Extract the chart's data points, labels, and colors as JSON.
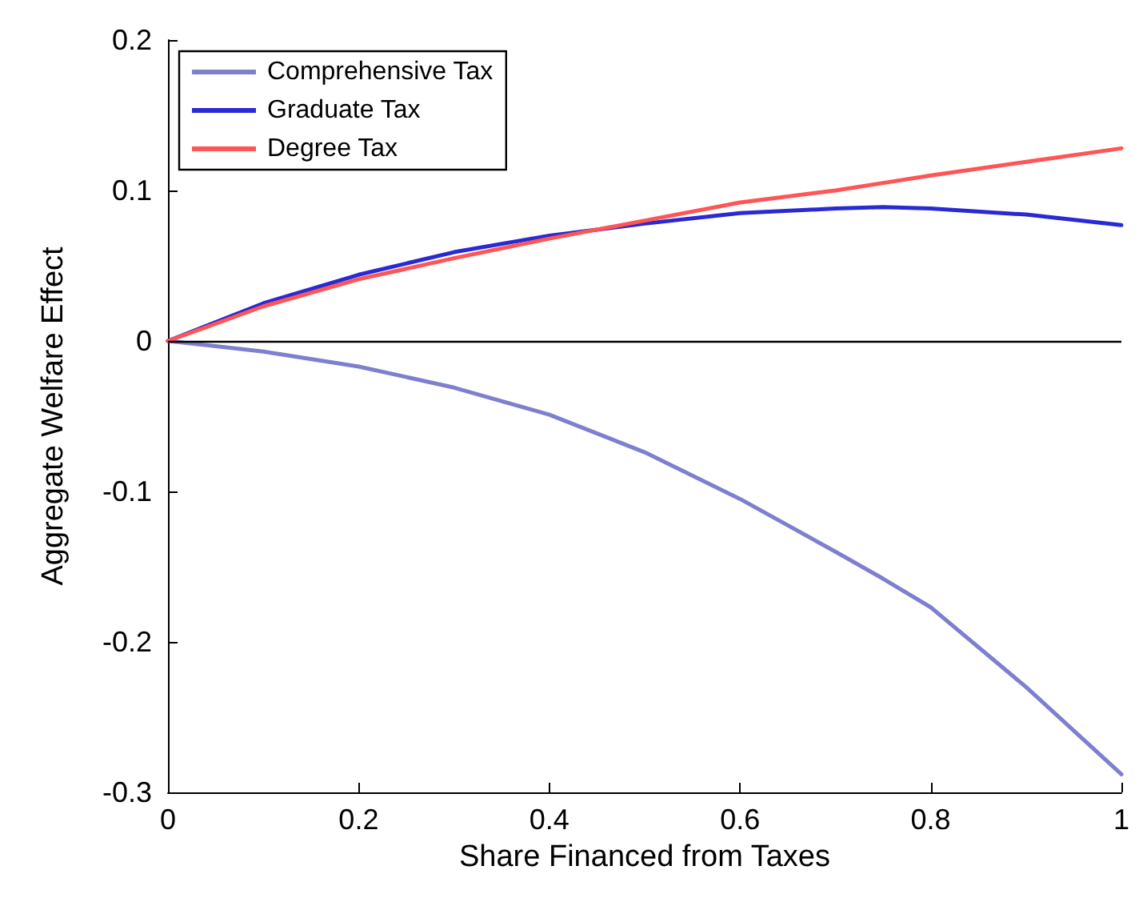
{
  "chart_data": {
    "type": "line",
    "xlabel": "Share Financed from Taxes",
    "ylabel": "Aggregate Welfare Effect",
    "x": [
      0,
      0.1,
      0.2,
      0.3,
      0.4,
      0.5,
      0.6,
      0.7,
      0.75,
      0.8,
      0.9,
      1
    ],
    "series": [
      {
        "name": "Comprehensive Tax",
        "color": "#7f7fd0",
        "values": [
          0,
          -0.007,
          -0.017,
          -0.031,
          -0.049,
          -0.074,
          -0.105,
          -0.14,
          -0.158,
          -0.177,
          -0.23,
          -0.288
        ]
      },
      {
        "name": "Graduate Tax",
        "color": "#2a2ad4",
        "values": [
          0,
          0.025,
          0.044,
          0.059,
          0.07,
          0.078,
          0.085,
          0.088,
          0.089,
          0.088,
          0.084,
          0.077
        ]
      },
      {
        "name": "Degree Tax",
        "color": "#ff5555",
        "values": [
          0,
          0.023,
          0.041,
          0.055,
          0.068,
          0.08,
          0.092,
          0.1,
          0.105,
          0.11,
          0.119,
          0.128
        ]
      }
    ],
    "xlim": [
      0,
      1
    ],
    "xticks": [
      0,
      {
        "value": 0.2,
        "label": "0.2"
      },
      {
        "value": 0.4,
        "label": "0.4"
      },
      {
        "value": 0.6,
        "label": "0.6"
      },
      {
        "value": 0.8,
        "label": "0.8"
      },
      1
    ],
    "ylim": [
      -0.3,
      0.2
    ],
    "yticks": [
      -0.3,
      -0.2,
      -0.1,
      0,
      0.1,
      0.2
    ],
    "ref_lines": [
      {
        "axis": "y",
        "value": 0,
        "color": "#000000"
      }
    ],
    "grid": false,
    "legend": "top left",
    "marker": "none",
    "line_style": "solid"
  }
}
